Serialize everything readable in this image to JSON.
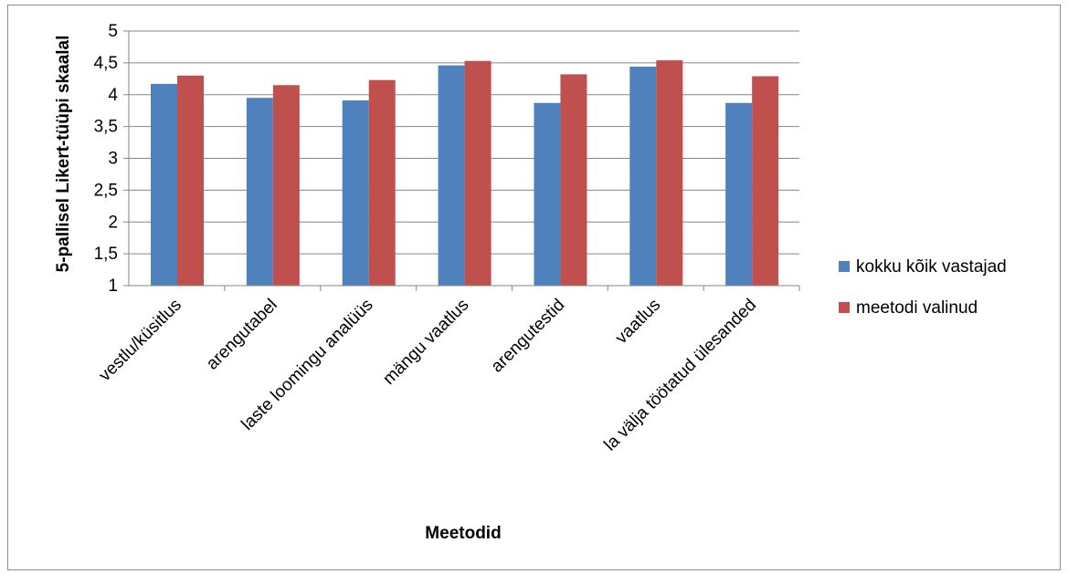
{
  "chart_data": {
    "type": "bar",
    "title": "",
    "xlabel": "Meetodid",
    "ylabel": "5-pallisel Likert-tüüpi skaalal",
    "ylim": [
      1,
      5
    ],
    "yticks": [
      "1",
      "1,5",
      "2",
      "2,5",
      "3",
      "3,5",
      "4",
      "4,5",
      "5"
    ],
    "ytick_values": [
      1,
      1.5,
      2,
      2.5,
      3,
      3.5,
      4,
      4.5,
      5
    ],
    "grid": "horizontal major gridlines",
    "legend_position": "right",
    "categories": [
      "vestlu/küsitlus",
      "arengutabel",
      "laste loomingu analüüs",
      "mängu vaatlus",
      "arengutestid",
      "vaatlus",
      "la välja töötatud ülesanded"
    ],
    "series": [
      {
        "name": "kokku kõik vastajad",
        "color": "#4f81bd",
        "values": [
          4.17,
          3.95,
          3.91,
          4.46,
          3.87,
          4.44,
          3.87
        ]
      },
      {
        "name": "meetodi valinud",
        "color": "#c0504d",
        "values": [
          4.3,
          4.15,
          4.23,
          4.53,
          4.32,
          4.54,
          4.29
        ]
      }
    ]
  }
}
